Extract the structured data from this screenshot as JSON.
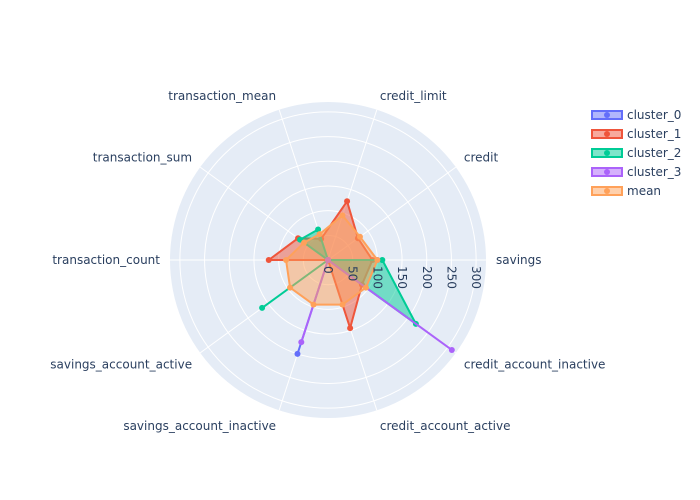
{
  "chart_data": {
    "type": "radar",
    "theta": [
      "savings",
      "credit",
      "credit_limit",
      "transaction_mean",
      "transaction_sum",
      "transaction_count",
      "savings_account_active",
      "savings_account_inactive",
      "credit_account_active",
      "credit_account_inactive"
    ],
    "radial_ticks": [
      0,
      50,
      100,
      150,
      200,
      250,
      300
    ],
    "radial_range": [
      0,
      320
    ],
    "grid": true,
    "legend_position": "top-right",
    "series": [
      {
        "name": "cluster_0",
        "color": "#636efa",
        "values": [
          100,
          0,
          0,
          0,
          0,
          0,
          0,
          200,
          0,
          0
        ]
      },
      {
        "name": "cluster_1",
        "color": "#ef553b",
        "values": [
          90,
          75,
          125,
          45,
          75,
          120,
          0,
          0,
          145,
          85
        ]
      },
      {
        "name": "cluster_2",
        "color": "#00cc96",
        "values": [
          110,
          0,
          0,
          65,
          70,
          0,
          165,
          0,
          0,
          220
        ]
      },
      {
        "name": "cluster_3",
        "color": "#ab63fa",
        "values": [
          0,
          0,
          0,
          0,
          0,
          0,
          0,
          175,
          0,
          310
        ]
      },
      {
        "name": "mean",
        "color": "#ffa15a",
        "values": [
          100,
          80,
          95,
          55,
          60,
          85,
          95,
          95,
          95,
          95
        ]
      }
    ]
  }
}
